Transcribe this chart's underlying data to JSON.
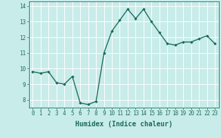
{
  "x": [
    0,
    1,
    2,
    3,
    4,
    5,
    6,
    7,
    8,
    9,
    10,
    11,
    12,
    13,
    14,
    15,
    16,
    17,
    18,
    19,
    20,
    21,
    22,
    23
  ],
  "y": [
    9.8,
    9.7,
    9.8,
    9.1,
    9.0,
    9.5,
    7.8,
    7.7,
    7.9,
    11.0,
    12.4,
    13.1,
    13.8,
    13.2,
    13.8,
    13.0,
    12.3,
    11.6,
    11.5,
    11.7,
    11.7,
    11.9,
    12.1,
    11.6
  ],
  "line_color": "#1a6b5a",
  "marker": "D",
  "marker_size": 1.8,
  "bg_color": "#c8ecea",
  "grid_color": "#ffffff",
  "tick_color": "#1a6b5a",
  "xlabel": "Humidex (Indice chaleur)",
  "xlabel_fontsize": 7,
  "ylim": [
    7.5,
    14.3
  ],
  "xlim": [
    -0.5,
    23.5
  ],
  "yticks": [
    8,
    9,
    10,
    11,
    12,
    13,
    14
  ],
  "xticks": [
    0,
    1,
    2,
    3,
    4,
    5,
    6,
    7,
    8,
    9,
    10,
    11,
    12,
    13,
    14,
    15,
    16,
    17,
    18,
    19,
    20,
    21,
    22,
    23
  ],
  "tick_fontsize": 5.5,
  "line_width": 1.0
}
